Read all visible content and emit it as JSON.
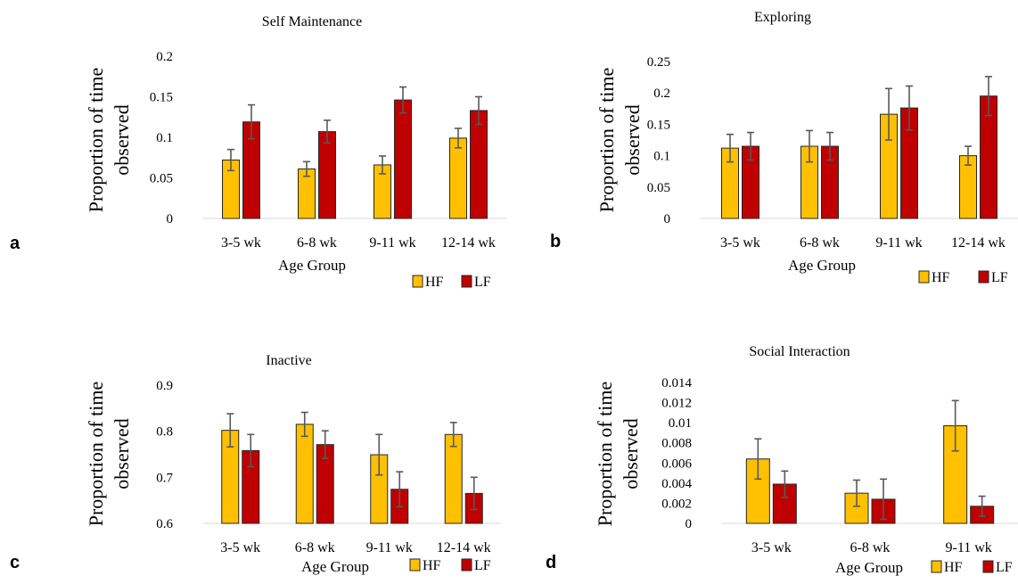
{
  "chart_data": [
    {
      "panel_letter": "a",
      "type": "bar",
      "title": "Self Maintenance",
      "xlabel": "Age Group",
      "ylabel": "Proportion of time observed",
      "ylabel_lines": [
        "Proportion of time",
        "observed"
      ],
      "categories": [
        "3-5 wk",
        "6-8 wk",
        "9-11 wk",
        "12-14 wk"
      ],
      "ylim": [
        0,
        0.2
      ],
      "yticks": [
        "0",
        "0.05",
        "0.1",
        "0.15",
        "0.2"
      ],
      "ytick_values": [
        0,
        0.05,
        0.1,
        0.15,
        0.2
      ],
      "legend": "bottom-right",
      "series": [
        {
          "name": "HF",
          "color": "#FFC000",
          "values": [
            0.072,
            0.061,
            0.066,
            0.099
          ],
          "errors": [
            0.013,
            0.009,
            0.011,
            0.012
          ]
        },
        {
          "name": "LF",
          "color": "#C00000",
          "values": [
            0.119,
            0.107,
            0.146,
            0.133
          ],
          "errors": [
            0.021,
            0.014,
            0.016,
            0.017
          ]
        }
      ]
    },
    {
      "panel_letter": "b",
      "type": "bar",
      "title": "Exploring",
      "xlabel": "Age Group",
      "ylabel": "Proportion of time observed",
      "ylabel_lines": [
        "Proportion of time",
        "observed"
      ],
      "categories": [
        "3-5 wk",
        "6-8 wk",
        "9-11 wk",
        "12-14 wk"
      ],
      "ylim": [
        0,
        0.25
      ],
      "yticks": [
        "0",
        "0.05",
        "0.1",
        "0.15",
        "0.2",
        "0.25"
      ],
      "ytick_values": [
        0,
        0.05,
        0.1,
        0.15,
        0.2,
        0.25
      ],
      "legend": "bottom-right",
      "series": [
        {
          "name": "HF",
          "color": "#FFC000",
          "values": [
            0.112,
            0.115,
            0.166,
            0.1
          ],
          "errors": [
            0.022,
            0.025,
            0.041,
            0.015
          ]
        },
        {
          "name": "LF",
          "color": "#C00000",
          "values": [
            0.115,
            0.115,
            0.176,
            0.195
          ],
          "errors": [
            0.022,
            0.022,
            0.035,
            0.031
          ]
        }
      ]
    },
    {
      "panel_letter": "c",
      "type": "bar",
      "title": "Inactive",
      "xlabel": "Age Group",
      "ylabel": "Proportion of time observed",
      "ylabel_lines": [
        "Proportion of time",
        "observed"
      ],
      "categories": [
        "3-5 wk",
        "6-8 wk",
        "9-11 wk",
        "12-14 wk"
      ],
      "ylim": [
        0.6,
        0.9
      ],
      "yticks": [
        "0.6",
        "0.7",
        "0.8",
        "0.9"
      ],
      "ytick_values": [
        0.6,
        0.7,
        0.8,
        0.9
      ],
      "legend": "bottom-right",
      "series": [
        {
          "name": "HF",
          "color": "#FFC000",
          "values": [
            0.802,
            0.815,
            0.749,
            0.793
          ],
          "errors": [
            0.036,
            0.026,
            0.044,
            0.026
          ]
        },
        {
          "name": "LF",
          "color": "#C00000",
          "values": [
            0.758,
            0.771,
            0.674,
            0.665
          ],
          "errors": [
            0.035,
            0.03,
            0.038,
            0.035
          ]
        }
      ]
    },
    {
      "panel_letter": "d",
      "type": "bar",
      "title": "Social Interaction",
      "xlabel": "Age Group",
      "ylabel": "Proportion of time observed",
      "ylabel_lines": [
        "Proportion of time",
        "observed"
      ],
      "categories": [
        "3-5 wk",
        "6-8 wk",
        "9-11 wk"
      ],
      "ylim": [
        0,
        0.014
      ],
      "yticks": [
        "0",
        "0.002",
        "0.004",
        "0.006",
        "0.008",
        "0.01",
        "0.012",
        "0.014"
      ],
      "ytick_values": [
        0,
        0.002,
        0.004,
        0.006,
        0.008,
        0.01,
        0.012,
        0.014
      ],
      "legend": "bottom-right",
      "series": [
        {
          "name": "HF",
          "color": "#FFC000",
          "values": [
            0.0064,
            0.003,
            0.0097
          ],
          "errors": [
            0.002,
            0.0013,
            0.0025
          ]
        },
        {
          "name": "LF",
          "color": "#C00000",
          "values": [
            0.0039,
            0.0024,
            0.0017
          ],
          "errors": [
            0.0013,
            0.002,
            0.001
          ]
        }
      ]
    }
  ]
}
